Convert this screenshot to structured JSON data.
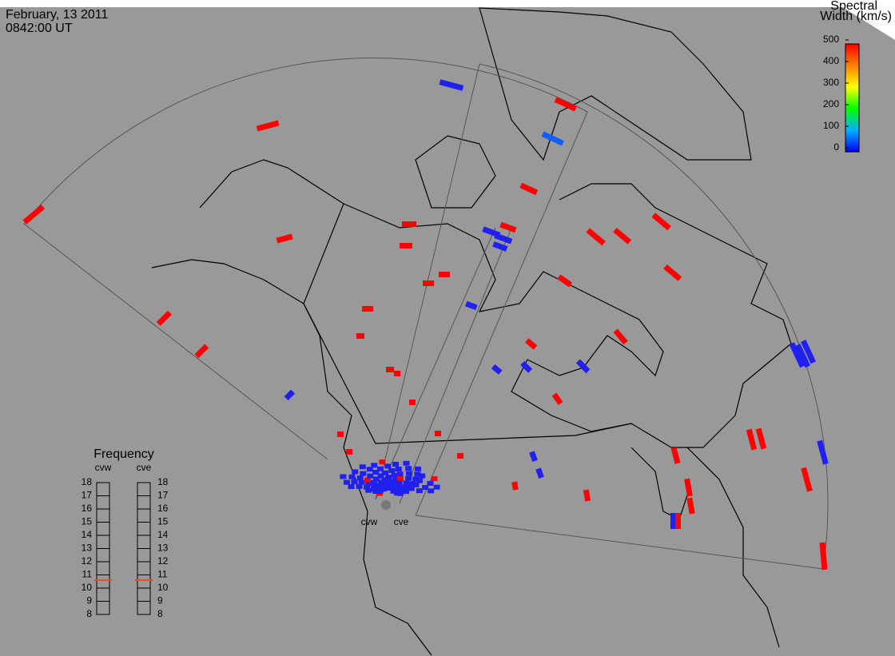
{
  "header": {
    "date": "February, 13 2011",
    "time": "0842:00 UT"
  },
  "colorbar": {
    "title": [
      "Spectral",
      "Width (km/s)"
    ],
    "ylim": [
      0,
      500
    ],
    "ticks": [
      0,
      100,
      200,
      300,
      400,
      500
    ]
  },
  "frequency": {
    "title": "Frequency",
    "ylim": [
      8,
      18
    ],
    "ticks": [
      8,
      9,
      10,
      11,
      12,
      13,
      14,
      15,
      16,
      17,
      18
    ],
    "radars": [
      {
        "name": "cvw",
        "value": 10.6
      },
      {
        "name": "cve",
        "value": 10.6
      }
    ]
  },
  "sites": [
    "cvw",
    "cve"
  ]
}
